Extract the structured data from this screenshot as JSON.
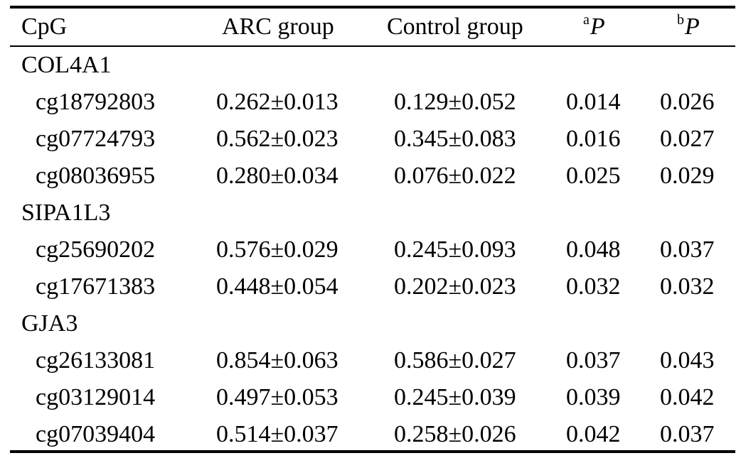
{
  "table": {
    "headers": {
      "cpg": "CpG",
      "arc": "ARC group",
      "control": "Control group",
      "pa_sup": "a",
      "pa_main": "P",
      "pb_sup": "b",
      "pb_main": "P"
    },
    "groups": [
      {
        "gene": "COL4A1",
        "rows": [
          {
            "cpg": "cg18792803",
            "arc": "0.262±0.013",
            "control": "0.129±0.052",
            "pa": "0.014",
            "pb": "0.026"
          },
          {
            "cpg": "cg07724793",
            "arc": "0.562±0.023",
            "control": "0.345±0.083",
            "pa": "0.016",
            "pb": "0.027"
          },
          {
            "cpg": "cg08036955",
            "arc": "0.280±0.034",
            "control": "0.076±0.022",
            "pa": "0.025",
            "pb": "0.029"
          }
        ]
      },
      {
        "gene": "SIPA1L3",
        "rows": [
          {
            "cpg": "cg25690202",
            "arc": "0.576±0.029",
            "control": "0.245±0.093",
            "pa": "0.048",
            "pb": "0.037"
          },
          {
            "cpg": "cg17671383",
            "arc": "0.448±0.054",
            "control": "0.202±0.023",
            "pa": "0.032",
            "pb": "0.032"
          }
        ]
      },
      {
        "gene": "GJA3",
        "rows": [
          {
            "cpg": "cg26133081",
            "arc": "0.854±0.063",
            "control": "0.586±0.027",
            "pa": "0.037",
            "pb": "0.043"
          },
          {
            "cpg": "cg03129014",
            "arc": "0.497±0.053",
            "control": "0.245±0.039",
            "pa": "0.039",
            "pb": "0.042"
          },
          {
            "cpg": "cg07039404",
            "arc": "0.514±0.037",
            "control": "0.258±0.026",
            "pa": "0.042",
            "pb": "0.037"
          }
        ]
      }
    ]
  }
}
